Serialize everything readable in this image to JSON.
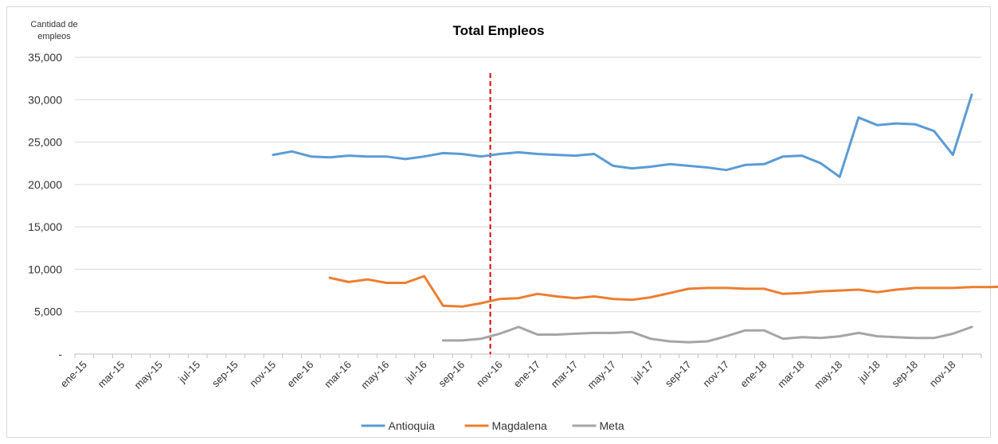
{
  "chart_data": {
    "type": "line",
    "title": "Total Empleos",
    "ylabel": [
      "Cantidad de",
      "empleos"
    ],
    "ylim": [
      0,
      35000
    ],
    "yticks": [
      0,
      5000,
      10000,
      15000,
      20000,
      25000,
      30000,
      35000
    ],
    "ytick_labels": [
      "-",
      "5,000",
      "10,000",
      "15,000",
      "20,000",
      "25,000",
      "30,000",
      "35,000"
    ],
    "x_start": "ene-15",
    "x_count": 48,
    "xtick_labels": [
      "ene-15",
      "mar-15",
      "may-15",
      "jul-15",
      "sep-15",
      "nov-15",
      "ene-16",
      "mar-16",
      "may-16",
      "jul-16",
      "sep-16",
      "nov-16",
      "ene-17",
      "mar-17",
      "may-17",
      "jul-17",
      "sep-17",
      "nov-17",
      "ene-18",
      "mar-18",
      "may-18",
      "jul-18",
      "sep-18",
      "nov-18"
    ],
    "xtick_every": 2,
    "vline": {
      "x_index": 21.5,
      "color": "#e00000",
      "style": "dashed"
    },
    "legend_position": "bottom-center",
    "grid": true,
    "series": [
      {
        "name": "Antioquia",
        "color": "#5b9bd5",
        "start_index": 10,
        "values": [
          23500,
          23900,
          23300,
          23200,
          23400,
          23300,
          23300,
          23000,
          23300,
          23700,
          23600,
          23300,
          23600,
          23800,
          23600,
          23500,
          23400,
          23600,
          22200,
          21900,
          22100,
          22400,
          22200,
          22000,
          21700,
          22300,
          22400,
          23300,
          23400,
          22500,
          20900,
          27900,
          27000,
          27200,
          27100,
          26300,
          23500,
          30600
        ]
      },
      {
        "name": "Magdalena",
        "color": "#ed7d31",
        "start_index": 13,
        "values": [
          9000,
          8500,
          8800,
          8400,
          8400,
          9200,
          5700,
          5600,
          6000,
          6500,
          6600,
          7100,
          6800,
          6600,
          6800,
          6500,
          6400,
          6700,
          7200,
          7700,
          7800,
          7800,
          7700,
          7700,
          7100,
          7200,
          7400,
          7500,
          7600,
          7300,
          7600,
          7800,
          7800,
          7800,
          7900,
          7900,
          8000
        ]
      },
      {
        "name": "Meta",
        "color": "#a5a5a5",
        "start_index": 19,
        "values": [
          1600,
          1600,
          1800,
          2400,
          3200,
          2300,
          2300,
          2400,
          2500,
          2500,
          2600,
          1800,
          1500,
          1400,
          1500,
          2100,
          2800,
          2800,
          1800,
          2000,
          1900,
          2100,
          2500,
          2100,
          2000,
          1900,
          1900,
          2400,
          3200
        ]
      }
    ]
  }
}
